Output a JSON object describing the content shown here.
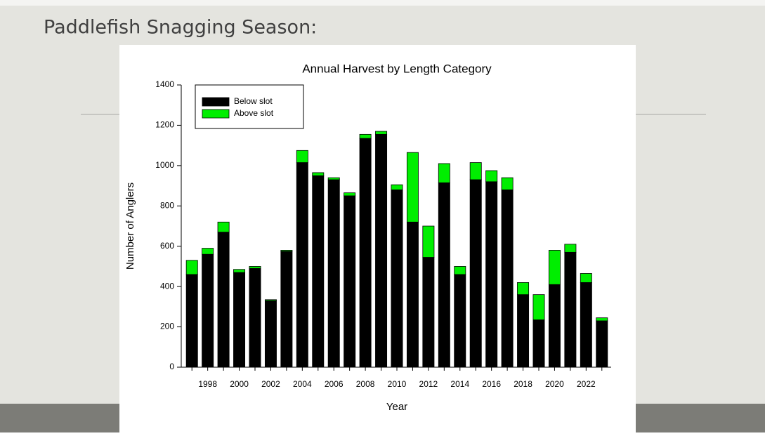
{
  "slide": {
    "title": "Paddlefish Snagging Season:"
  },
  "chart_data": {
    "type": "stacked_bar",
    "title": "Annual Harvest by Length Category",
    "x_label": "Year",
    "y_label": "Number of Anglers",
    "categories": [
      null,
      "1998",
      null,
      "2000",
      null,
      "2002",
      null,
      "2004",
      null,
      "2006",
      null,
      "2008",
      null,
      "2010",
      null,
      "2012",
      null,
      "2014",
      null,
      "2016",
      null,
      "2018",
      null,
      "2020",
      null,
      "2022",
      null
    ],
    "series": [
      {
        "name": "Below slot",
        "color": "#000000",
        "values": [
          460,
          560,
          670,
          470,
          490,
          330,
          575,
          1015,
          950,
          930,
          850,
          1135,
          1155,
          880,
          720,
          545,
          915,
          460,
          930,
          920,
          880,
          360,
          235,
          410,
          570,
          420,
          230
        ]
      },
      {
        "name": "Above slot",
        "color": "#00ee00",
        "values": [
          70,
          30,
          50,
          15,
          10,
          5,
          5,
          60,
          15,
          10,
          15,
          20,
          15,
          25,
          345,
          155,
          95,
          40,
          85,
          55,
          60,
          60,
          125,
          170,
          40,
          45,
          15
        ]
      }
    ],
    "ylim": [
      0,
      1400
    ],
    "yticks": [
      0,
      200,
      400,
      600,
      800,
      1000,
      1200,
      1400
    ],
    "grid": false,
    "legend": "upper left"
  }
}
